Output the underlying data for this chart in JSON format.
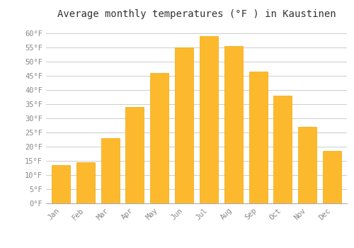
{
  "title": "Average monthly temperatures (°F ) in Kaustinen",
  "months": [
    "Jan",
    "Feb",
    "Mar",
    "Apr",
    "May",
    "Jun",
    "Jul",
    "Aug",
    "Sep",
    "Oct",
    "Nov",
    "Dec"
  ],
  "values": [
    13.5,
    14.5,
    23.0,
    34.0,
    46.0,
    55.0,
    59.0,
    55.5,
    46.5,
    38.0,
    27.0,
    18.5
  ],
  "bar_color": "#FDB92E",
  "bar_edge_color": "#F0A800",
  "background_color": "#FFFFFF",
  "grid_color": "#CCCCCC",
  "ylabel_ticks": [
    "0°F",
    "5°F",
    "10°F",
    "15°F",
    "20°F",
    "25°F",
    "30°F",
    "35°F",
    "40°F",
    "45°F",
    "50°F",
    "55°F",
    "60°F"
  ],
  "ytick_values": [
    0,
    5,
    10,
    15,
    20,
    25,
    30,
    35,
    40,
    45,
    50,
    55,
    60
  ],
  "ylim": [
    0,
    63
  ],
  "title_fontsize": 10,
  "tick_fontsize": 7.5,
  "tick_color": "#888888",
  "font_family": "monospace",
  "bar_width": 0.75
}
